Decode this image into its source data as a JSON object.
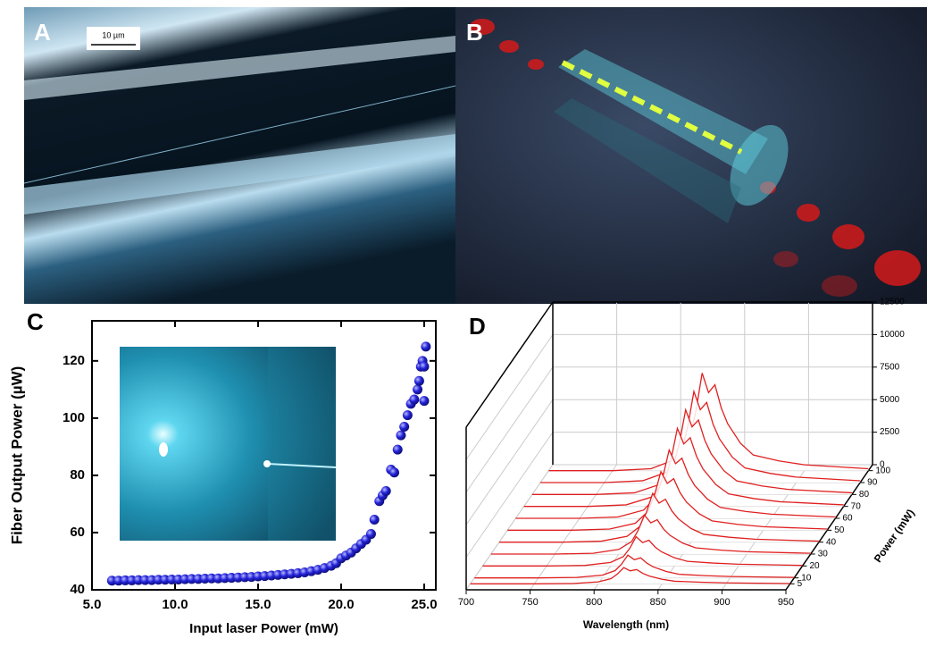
{
  "panels": [
    {
      "label": "A",
      "scale_bar": "10 µm"
    },
    {
      "label": "B"
    }
  ],
  "chart_data": [
    {
      "type": "scatter",
      "panel": "C",
      "xlabel": "Input laser Power (mW)",
      "ylabel": "Fiber Output Power (µW)",
      "color": "#2323d8",
      "x": [
        6.2,
        6.6,
        7.0,
        7.4,
        7.8,
        8.2,
        8.6,
        9.0,
        9.4,
        9.8,
        10.2,
        10.6,
        11.0,
        11.4,
        11.8,
        12.2,
        12.6,
        13.0,
        13.4,
        13.8,
        14.2,
        14.6,
        15.0,
        15.4,
        15.8,
        16.2,
        16.6,
        17.0,
        17.4,
        17.8,
        18.2,
        18.6,
        19.0,
        19.4,
        19.7,
        20.0,
        20.3,
        20.6,
        20.9,
        21.2,
        21.5,
        21.8,
        22.0,
        22.3,
        22.5,
        22.7,
        23.0,
        23.2,
        23.4,
        23.6,
        23.8,
        24.0,
        24.2,
        24.4,
        24.6,
        24.7,
        24.8,
        24.9,
        25.0,
        25.1,
        25.0
      ],
      "values": [
        43.2,
        43.2,
        43.3,
        43.3,
        43.4,
        43.4,
        43.4,
        43.5,
        43.5,
        43.6,
        43.6,
        43.7,
        43.8,
        43.8,
        43.9,
        44.0,
        44.0,
        44.1,
        44.2,
        44.3,
        44.4,
        44.5,
        44.7,
        44.8,
        45.0,
        45.2,
        45.4,
        45.6,
        45.8,
        46.1,
        46.5,
        47.0,
        47.6,
        48.4,
        49.3,
        51,
        52,
        53,
        54.5,
        56,
        57.5,
        59.5,
        64.5,
        71,
        73,
        74.5,
        82,
        81,
        89,
        94,
        97,
        101,
        105,
        106.5,
        110,
        113,
        118,
        120,
        118,
        125,
        106
      ],
      "xlim": [
        5,
        25.7
      ],
      "ylim": [
        40,
        134
      ],
      "xticks": [
        {
          "value": 5,
          "label": "5.0"
        },
        {
          "value": 10,
          "label": "10.0"
        },
        {
          "value": 15,
          "label": "15.0"
        },
        {
          "value": 20,
          "label": "20.0"
        },
        {
          "value": 25,
          "label": "25.0"
        }
      ],
      "yticks": [
        40,
        60,
        80,
        100,
        120
      ]
    },
    {
      "type": "waterfall",
      "panel": "D",
      "xlabel": "Wavelength (nm)",
      "zlabel": "Power (mW)",
      "color": "#e02020",
      "x": [
        700,
        750,
        780,
        800,
        810,
        815,
        820,
        825,
        830,
        835,
        840,
        850,
        860,
        880,
        900,
        950
      ],
      "xlim": [
        700,
        950
      ],
      "xticks": [
        700,
        750,
        800,
        850,
        900,
        950
      ],
      "ylim": [
        0,
        12500
      ],
      "yticks": [
        0,
        2500,
        5000,
        7500,
        10000,
        12500
      ],
      "zlim": [
        0,
        105
      ],
      "zticks": [
        5,
        10,
        20,
        30,
        40,
        50,
        60,
        70,
        80,
        90,
        100
      ],
      "series": [
        {
          "values": [
            0,
            0,
            25,
            150,
            400,
            750,
            1250,
            1000,
            1100,
            800,
            600,
            350,
            200,
            125,
            75,
            25
          ]
        },
        {
          "values": [
            0,
            0,
            35,
            210,
            560,
            1050,
            1750,
            1400,
            1540,
            1120,
            840,
            490,
            280,
            175,
            105,
            35
          ]
        },
        {
          "values": [
            0,
            0,
            45,
            270,
            720,
            1350,
            2250,
            1800,
            1980,
            1440,
            1080,
            630,
            360,
            225,
            135,
            45
          ]
        },
        {
          "values": [
            0,
            0,
            60,
            360,
            960,
            1800,
            3000,
            2400,
            2640,
            1920,
            1440,
            840,
            480,
            300,
            180,
            60
          ]
        },
        {
          "values": [
            0,
            0,
            75,
            450,
            1200,
            2250,
            3750,
            3000,
            3300,
            2400,
            1800,
            1050,
            600,
            375,
            225,
            75
          ]
        },
        {
          "values": [
            0,
            0,
            90,
            540,
            1440,
            2700,
            4500,
            3600,
            3960,
            2880,
            2160,
            1260,
            720,
            450,
            270,
            90
          ]
        },
        {
          "values": [
            0,
            0,
            105,
            630,
            1680,
            3150,
            5250,
            4200,
            4620,
            3360,
            2520,
            1470,
            840,
            525,
            315,
            105
          ]
        },
        {
          "values": [
            0,
            0,
            120,
            720,
            1920,
            3600,
            6000,
            4800,
            5280,
            3840,
            2880,
            1680,
            960,
            600,
            360,
            120
          ]
        },
        {
          "values": [
            0,
            0,
            130,
            780,
            2080,
            3900,
            6500,
            5200,
            5720,
            4160,
            3120,
            1820,
            1040,
            650,
            390,
            130
          ]
        },
        {
          "values": [
            0,
            0,
            140,
            840,
            2240,
            4200,
            7000,
            5600,
            6160,
            4480,
            3360,
            1960,
            1120,
            700,
            420,
            140
          ]
        },
        {
          "values": [
            0,
            0,
            150,
            900,
            2400,
            4500,
            7500,
            6000,
            6600,
            4800,
            3600,
            2100,
            1200,
            750,
            450,
            150
          ]
        }
      ]
    }
  ]
}
